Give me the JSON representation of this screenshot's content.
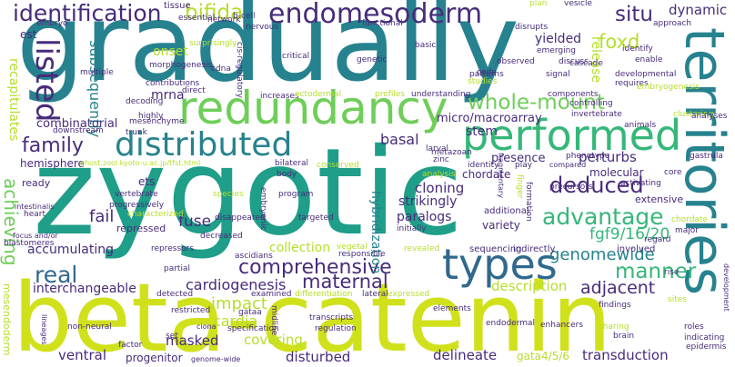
{
  "colors": {
    "navy": "#472c7a",
    "indigo": "#3e4989",
    "blue": "#31688e",
    "teal": "#26828e",
    "cyan": "#1f9e89",
    "green": "#35b779",
    "lime": "#6ece58",
    "yellowgreen": "#b5de2b",
    "yellow": "#d0e11c"
  },
  "words": [
    {
      "text": "gradually"
    },
    {
      "text": "zygotic"
    },
    {
      "text": "beta-catenin"
    },
    {
      "text": "territories"
    },
    {
      "text": "redundancy"
    },
    {
      "text": "distributed"
    },
    {
      "text": "performed"
    },
    {
      "text": "types"
    },
    {
      "text": "identification"
    },
    {
      "text": "endomesoderm"
    },
    {
      "text": "bifida"
    },
    {
      "text": "situ"
    },
    {
      "text": "dynamic"
    },
    {
      "text": "foxd"
    },
    {
      "text": "listed"
    },
    {
      "text": "family"
    },
    {
      "text": "whole-mount"
    },
    {
      "text": "deduced"
    },
    {
      "text": "advantage"
    },
    {
      "text": "comprehensive"
    },
    {
      "text": "genomewide"
    },
    {
      "text": "maternal"
    },
    {
      "text": "real"
    },
    {
      "text": "manner"
    },
    {
      "text": "fgf9/16/20"
    },
    {
      "text": "achieving"
    },
    {
      "text": "recapitulates"
    },
    {
      "text": "subsequently"
    },
    {
      "text": "cardiogenesis"
    },
    {
      "text": "adjacent"
    },
    {
      "text": "description"
    },
    {
      "text": "impact"
    },
    {
      "text": "cardia"
    },
    {
      "text": "delineate"
    },
    {
      "text": "transduction"
    },
    {
      "text": "ventral"
    },
    {
      "text": "covering"
    },
    {
      "text": "disturbed"
    },
    {
      "text": "masked"
    },
    {
      "text": "progenitor"
    },
    {
      "text": "fail"
    },
    {
      "text": "fuse"
    },
    {
      "text": "interchangeable"
    },
    {
      "text": "accumulating"
    },
    {
      "text": "repressed"
    },
    {
      "text": "cloning"
    },
    {
      "text": "strikingly"
    },
    {
      "text": "paralogs"
    },
    {
      "text": "variety"
    },
    {
      "text": "perturbs"
    },
    {
      "text": "presence"
    },
    {
      "text": "chordate"
    },
    {
      "text": "basal"
    },
    {
      "text": "stem"
    },
    {
      "text": "molecular"
    },
    {
      "text": "extensive"
    },
    {
      "text": "micro/macroarray"
    },
    {
      "text": "yielded"
    },
    {
      "text": "release"
    },
    {
      "text": "hybridization"
    },
    {
      "text": "combinatorial"
    },
    {
      "text": "mrna"
    },
    {
      "text": "hemisphere"
    },
    {
      "text": "onset"
    },
    {
      "text": "est"
    },
    {
      "text": "collection"
    },
    {
      "text": "gata4/5/6"
    },
    {
      "text": "mesendoderm"
    },
    {
      "text": "ready"
    },
    {
      "text": "ets"
    },
    {
      "text": "additional"
    },
    {
      "text": "sequencing"
    },
    {
      "text": "indirectly"
    },
    {
      "text": "involved"
    },
    {
      "text": "tissue"
    },
    {
      "text": "embryo"
    },
    {
      "text": "essential"
    },
    {
      "text": "network"
    },
    {
      "text": "b-cell"
    },
    {
      "text": "nervous"
    },
    {
      "text": "functional"
    },
    {
      "text": "vesicle"
    },
    {
      "text": "plan"
    },
    {
      "text": "disrupts"
    },
    {
      "text": "approach"
    },
    {
      "text": "identify"
    },
    {
      "text": "enable"
    },
    {
      "text": "surprisingly"
    },
    {
      "text": "cdna"
    },
    {
      "text": "cis-regulatory"
    },
    {
      "text": "critical"
    },
    {
      "text": "genetic"
    },
    {
      "text": "basic"
    },
    {
      "text": "patterns"
    },
    {
      "text": "code"
    },
    {
      "text": "studies"
    },
    {
      "text": "observed"
    },
    {
      "text": "signal"
    },
    {
      "text": "emerging"
    },
    {
      "text": "discuss"
    },
    {
      "text": "cascade"
    },
    {
      "text": "developmental"
    },
    {
      "text": "requires"
    },
    {
      "text": "embryogenesis"
    },
    {
      "text": "multiple"
    },
    {
      "text": "morphogenesis"
    },
    {
      "text": "contributions"
    },
    {
      "text": "direct"
    },
    {
      "text": "decoding"
    },
    {
      "text": "increases"
    },
    {
      "text": "ectodermal"
    },
    {
      "text": "profiles"
    },
    {
      "text": "understanding"
    },
    {
      "text": "components"
    },
    {
      "text": "highly"
    },
    {
      "text": "mesenchyme"
    },
    {
      "text": "invertebrate"
    },
    {
      "text": "controlling"
    },
    {
      "text": "clustering"
    },
    {
      "text": "analyses"
    },
    {
      "text": "animals"
    },
    {
      "text": "downstream"
    },
    {
      "text": "trunk"
    },
    {
      "text": "larval"
    },
    {
      "text": "metazoan"
    },
    {
      "text": "zinc"
    },
    {
      "text": "ghost.zool.kyoto-u.ac.jp/tfst.html"
    },
    {
      "text": "bilateral"
    },
    {
      "text": "conserved"
    },
    {
      "text": "identity"
    },
    {
      "text": "fragmentary"
    },
    {
      "text": "play"
    },
    {
      "text": "compared"
    },
    {
      "text": "phenotype"
    },
    {
      "text": "gastrula"
    },
    {
      "text": "core"
    },
    {
      "text": "body"
    },
    {
      "text": "analysis"
    },
    {
      "text": "finger"
    },
    {
      "text": "precursors"
    },
    {
      "text": "activating"
    },
    {
      "text": "intestinalis"
    },
    {
      "text": "vertebrate"
    },
    {
      "text": "progressively"
    },
    {
      "text": "characterized"
    },
    {
      "text": "heart"
    },
    {
      "text": "species"
    },
    {
      "text": "program"
    },
    {
      "text": "embryonic"
    },
    {
      "text": "targeted"
    },
    {
      "text": "disappeared"
    },
    {
      "text": "initially"
    },
    {
      "text": "formation"
    },
    {
      "text": "chordate"
    },
    {
      "text": "major"
    },
    {
      "text": "regard"
    },
    {
      "text": "decreased"
    },
    {
      "text": "vegetal"
    },
    {
      "text": "repressors"
    },
    {
      "text": "responsible"
    },
    {
      "text": "revealed"
    },
    {
      "text": "ascidians"
    },
    {
      "text": "focus and/or"
    },
    {
      "text": "blastomeres"
    },
    {
      "text": "partial"
    },
    {
      "text": "rise"
    },
    {
      "text": "detected"
    },
    {
      "text": "examined"
    },
    {
      "text": "differentiation"
    },
    {
      "text": "lateral"
    },
    {
      "text": "expressed"
    },
    {
      "text": "sites"
    },
    {
      "text": "development"
    },
    {
      "text": "restricted"
    },
    {
      "text": "gataa"
    },
    {
      "text": "midline"
    },
    {
      "text": "elements"
    },
    {
      "text": "findings"
    },
    {
      "text": "non-neural"
    },
    {
      "text": "ciona"
    },
    {
      "text": "transcripts"
    },
    {
      "text": "endodermal"
    },
    {
      "text": "enhancers"
    },
    {
      "text": "sharing"
    },
    {
      "text": "roles"
    },
    {
      "text": "lineages"
    },
    {
      "text": "factor"
    },
    {
      "text": "set"
    },
    {
      "text": "specification"
    },
    {
      "text": "regulation"
    },
    {
      "text": "brain"
    },
    {
      "text": "indicating"
    },
    {
      "text": "epidermis"
    },
    {
      "text": "genome-wide"
    }
  ]
}
